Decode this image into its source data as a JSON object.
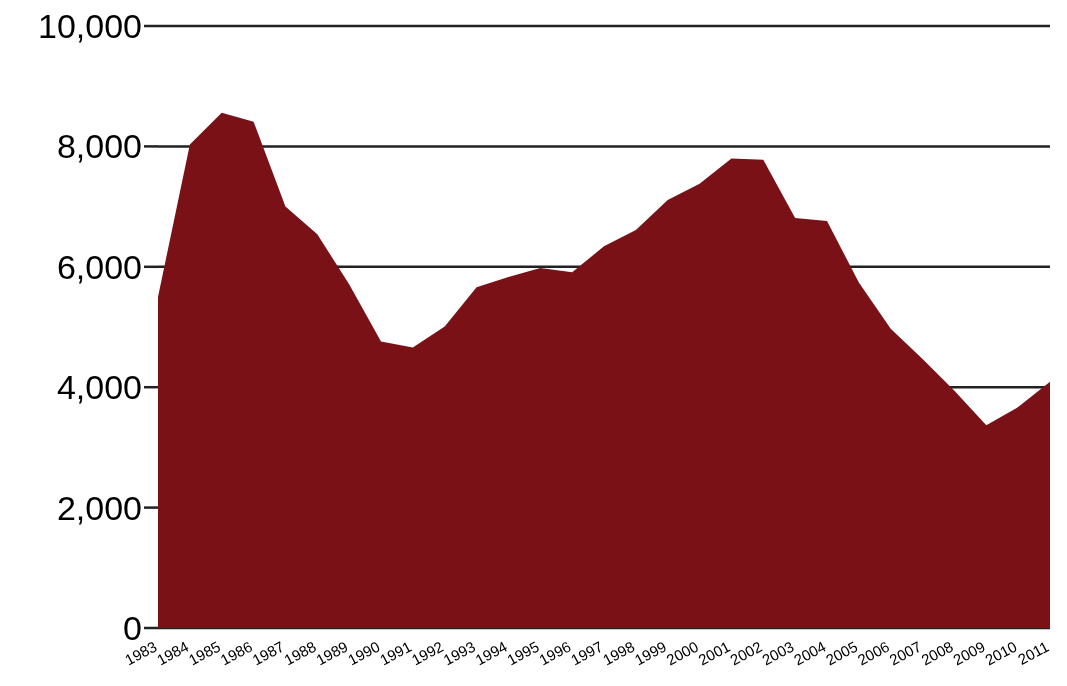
{
  "chart_data": {
    "type": "area",
    "categories": [
      "1983",
      "1984",
      "1985",
      "1986",
      "1987",
      "1988",
      "1989",
      "1990",
      "1991",
      "1992",
      "1993",
      "1994",
      "1995",
      "1996",
      "1997",
      "1998",
      "1999",
      "2000",
      "2001",
      "2002",
      "2003",
      "2004",
      "2005",
      "2006",
      "2007",
      "2008",
      "2009",
      "2010",
      "2011"
    ],
    "values": [
      5500,
      8030,
      8560,
      8410,
      7000,
      6540,
      5710,
      4760,
      4660,
      5010,
      5660,
      5830,
      5980,
      5910,
      6340,
      6610,
      7110,
      7380,
      7800,
      7780,
      6810,
      6760,
      5740,
      4970,
      4470,
      3940,
      3370,
      3670,
      4090
    ],
    "color": "#7a1117",
    "ylim": [
      0,
      10000
    ],
    "yticks": [
      {
        "value": 0,
        "label": "0"
      },
      {
        "value": 2000,
        "label": "2,000"
      },
      {
        "value": 4000,
        "label": "4,000"
      },
      {
        "value": 6000,
        "label": "6,000"
      },
      {
        "value": 8000,
        "label": "8,000"
      },
      {
        "value": 10000,
        "label": "10,000"
      }
    ],
    "grid": "y"
  }
}
